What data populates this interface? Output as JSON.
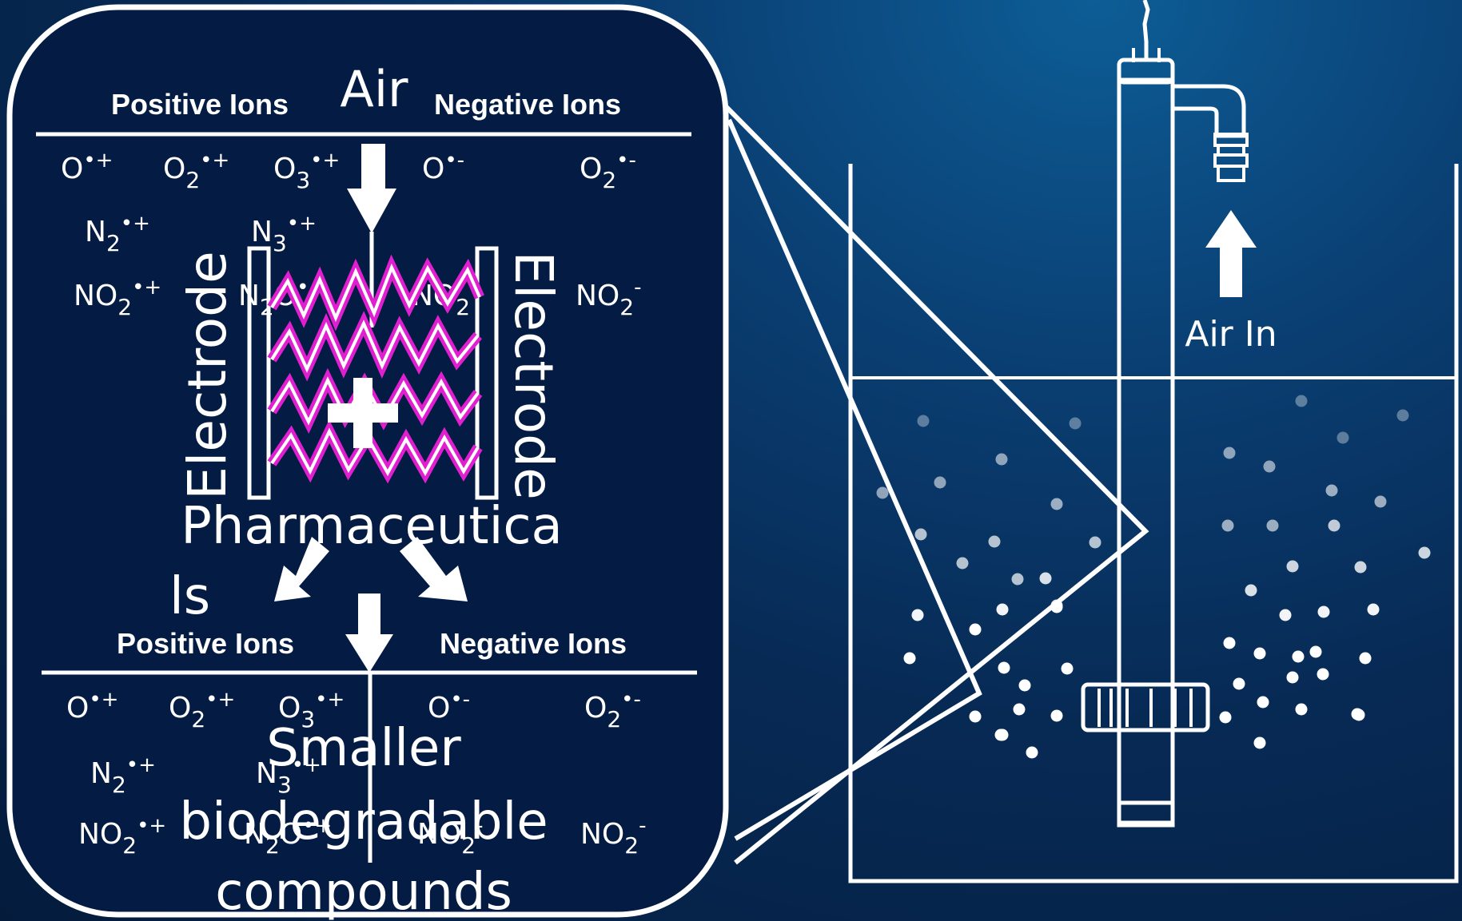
{
  "colors": {
    "background": "#072a55",
    "stroke": "#ffffff",
    "plasma": "#e020d0"
  },
  "inset": {
    "air_label": "Air",
    "top_header": {
      "positive": "Positive Ions",
      "negative": "Negative Ions"
    },
    "top_ions": {
      "o_pos": {
        "base": "O",
        "sub": "",
        "sup": "•+"
      },
      "o2_pos": {
        "base": "O",
        "sub": "2",
        "sup": "•+"
      },
      "o3_pos": {
        "base": "O",
        "sub": "3",
        "sup": "•+"
      },
      "o_neg": {
        "base": "O",
        "sub": "",
        "sup": "•-"
      },
      "o2_neg": {
        "base": "O",
        "sub": "2",
        "sup": "•-"
      },
      "n2_pos": {
        "base": "N",
        "sub": "2",
        "sup": "•+"
      },
      "n3_pos": {
        "base": "N",
        "sub": "3",
        "sup": "•+"
      },
      "no2_pos": {
        "base": "NO",
        "sub": "2",
        "sup": "•+"
      },
      "n2o_pos": {
        "base": "N",
        "sub": "2",
        "mid": "O",
        "sup": "•+"
      },
      "no2_neg_mid": {
        "base": "NO",
        "sub": "2",
        "sup": "-"
      },
      "no2_neg": {
        "base": "NO",
        "sub": "2",
        "sup": "-"
      }
    },
    "electrode_left": "Electrode",
    "electrode_right": "Electrode",
    "plus_sign": "+",
    "pharma_line1": "Pharmaceutica",
    "pharma_line2": "ls",
    "bottom_header": {
      "positive": "Positive Ions",
      "negative": "Negative Ions"
    },
    "bottom_ions": {
      "o_pos": {
        "base": "O",
        "sub": "",
        "sup": "•+"
      },
      "o2_pos": {
        "base": "O",
        "sub": "2",
        "sup": "•+"
      },
      "o3_pos": {
        "base": "O",
        "sub": "3",
        "sup": "•+"
      },
      "o_neg": {
        "base": "O",
        "sub": "",
        "sup": "•-"
      },
      "o2_neg": {
        "base": "O",
        "sub": "2",
        "sup": "•-"
      },
      "n2_pos": {
        "base": "N",
        "sub": "2",
        "sup": "•+"
      },
      "n3_pos": {
        "base": "N",
        "sub": "3",
        "sup": "•+"
      },
      "no2_pos": {
        "base": "NO",
        "sub": "2",
        "sup": "•+"
      },
      "n2o_pos": {
        "base": "N",
        "sub": "2",
        "mid": "O",
        "sup": "•+"
      },
      "no2_neg_mid": {
        "base": "NO",
        "sub": "2",
        "sup": "-"
      },
      "no2_neg": {
        "base": "NO",
        "sub": "2",
        "sup": "-"
      }
    },
    "product_line1": "Smaller",
    "product_line2": "biodegradable",
    "product_line3": "compounds"
  },
  "reactor": {
    "air_in_label": "Air In"
  }
}
